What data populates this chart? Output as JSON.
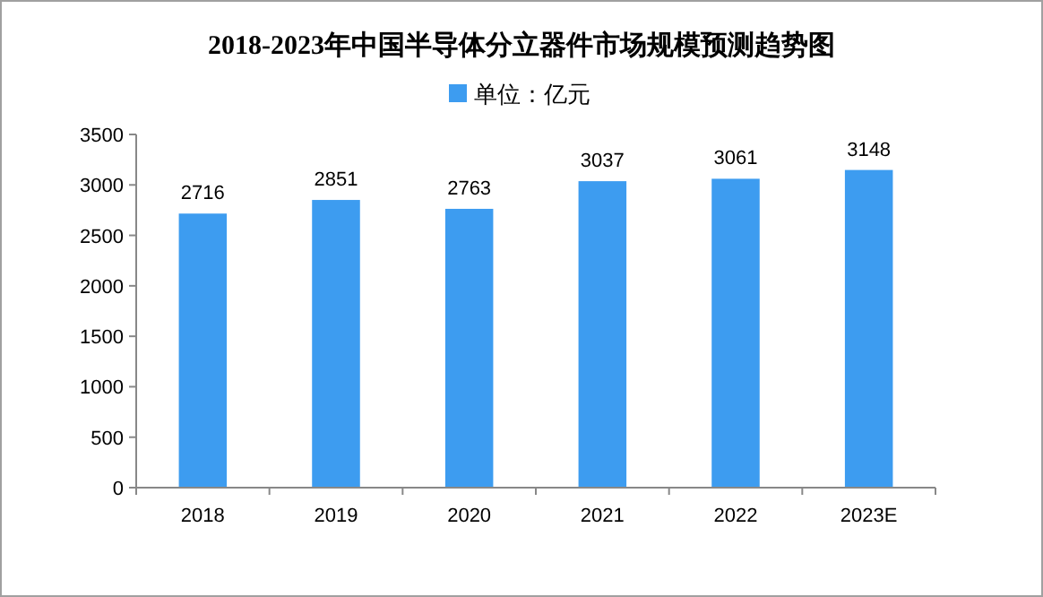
{
  "chart_data": {
    "type": "bar",
    "title": "2018-2023年中国半导体分立器件市场规模预测趋势图",
    "categories": [
      "2018",
      "2019",
      "2020",
      "2021",
      "2022",
      "2023E"
    ],
    "series": [
      {
        "name": "单位：亿元",
        "color": "#3d9cf0",
        "values": [
          2716,
          2851,
          2763,
          3037,
          3061,
          3148
        ]
      }
    ],
    "ylim": [
      0,
      3500
    ],
    "yticks": [
      0,
      500,
      1000,
      1500,
      2000,
      2500,
      3000,
      3500
    ],
    "data_labels": true,
    "legend": "top"
  }
}
